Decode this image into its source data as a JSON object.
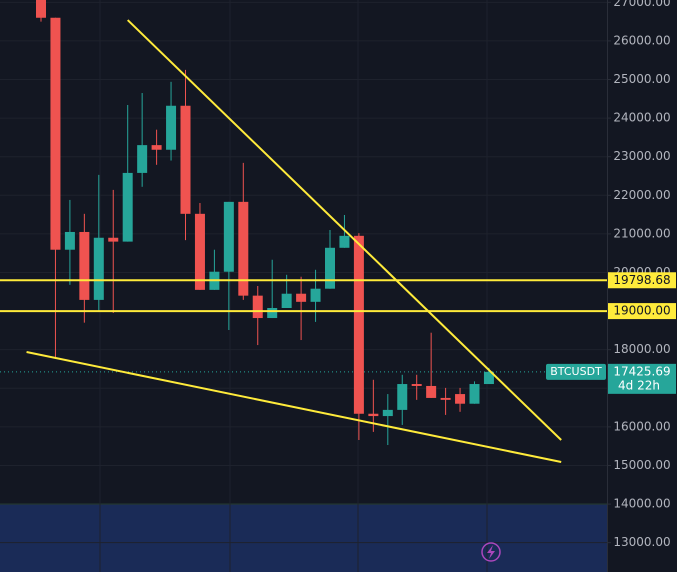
{
  "chart_data": {
    "type": "candlestick",
    "symbol": "BTCUSDT",
    "countdown": "4d 22h",
    "last_price_label": "17425.69",
    "up_color": "#26a69a",
    "down_color": "#ef5350",
    "grid": true,
    "ylim": [
      12240,
      27060
    ],
    "yticks": [
      {
        "value": 13000,
        "label": "13000.00"
      },
      {
        "value": 14000,
        "label": "14000.00"
      },
      {
        "value": 15000,
        "label": "15000.00"
      },
      {
        "value": 16000,
        "label": "16000.00"
      },
      {
        "value": 17000,
        "label": "17000.00"
      },
      {
        "value": 18000,
        "label": "18000.00"
      },
      {
        "value": 19000,
        "label": "19000.00"
      },
      {
        "value": 20000,
        "label": "20000.00"
      },
      {
        "value": 21000,
        "label": "21000.00"
      },
      {
        "value": 22000,
        "label": "22000.00"
      },
      {
        "value": 23000,
        "label": "23000.00"
      },
      {
        "value": 24000,
        "label": "24000.00"
      },
      {
        "value": 25000,
        "label": "25000.00"
      },
      {
        "value": 26000,
        "label": "26000.00"
      },
      {
        "value": 27000,
        "label": "27000.00"
      }
    ],
    "open": [
      27300,
      26600,
      20590,
      21050,
      19290,
      20900,
      20800,
      22580,
      23300,
      23180,
      24320,
      21520,
      19550,
      20020,
      21830,
      19400,
      18820,
      19080,
      19450,
      19240,
      19580,
      20640,
      20950,
      16340,
      16280,
      16440,
      17110,
      17060,
      16750,
      16850,
      16600,
      17110
    ],
    "high": [
      27400,
      26600,
      21880,
      21520,
      22530,
      22140,
      24340,
      24650,
      23700,
      24940,
      25250,
      21800,
      20590,
      21830,
      22840,
      19650,
      20330,
      19940,
      19890,
      20070,
      21100,
      21490,
      21020,
      17220,
      16850,
      17350,
      17350,
      18440,
      17010,
      17010,
      17180,
      17530
    ],
    "low": [
      26500,
      17790,
      19680,
      18700,
      18980,
      18950,
      20800,
      22220,
      22790,
      22900,
      20840,
      19550,
      19550,
      18510,
      19290,
      18120,
      18820,
      19080,
      18250,
      18720,
      19580,
      20640,
      15660,
      15870,
      15530,
      16050,
      16700,
      16750,
      16310,
      16390,
      16600,
      17110
    ],
    "close": [
      26600,
      20590,
      21050,
      19290,
      20900,
      20800,
      22580,
      23300,
      23180,
      24320,
      21520,
      19550,
      20020,
      21830,
      19400,
      18820,
      19080,
      19450,
      19240,
      19580,
      20640,
      20950,
      16340,
      16280,
      16440,
      17110,
      17060,
      16750,
      16700,
      16600,
      17110,
      17425.69
    ],
    "levels": [
      {
        "value": 19798.68,
        "label": "19798.68",
        "color": "#ffeb3b"
      },
      {
        "value": 19000,
        "label": "19000.00",
        "color": "#ffeb3b"
      }
    ],
    "trendlines": [
      {
        "x": [
          6,
          36
        ],
        "y": [
          26540,
          15660
        ],
        "color": "#ffeb3b"
      },
      {
        "x": [
          -1,
          36
        ],
        "y": [
          17940,
          15090
        ],
        "color": "#ffeb3b"
      }
    ],
    "zone": {
      "level": 14000,
      "color": "#1a2b57",
      "line_color": "#4caf50"
    }
  }
}
